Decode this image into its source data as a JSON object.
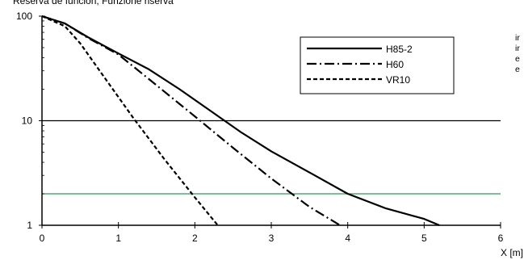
{
  "chart_data": {
    "type": "line",
    "title": "Reserva de función, Funzione riserva",
    "xlabel": "X [m]",
    "ylabel": "",
    "xlim": [
      0,
      6
    ],
    "ylim": [
      1,
      100
    ],
    "yscale": "log",
    "x_ticks": [
      "0",
      "1",
      "2",
      "3",
      "4",
      "5",
      "6"
    ],
    "y_ticks": [
      "1",
      "10",
      "100"
    ],
    "grid": false,
    "reference_lines": [
      {
        "y": 10,
        "color": "#000000"
      },
      {
        "y": 2,
        "color": "#2e9b57"
      }
    ],
    "legend_position": "top-right",
    "series": [
      {
        "name": "H85-2",
        "style": "solid",
        "x": [
          0,
          0.3,
          0.6,
          1.0,
          1.4,
          1.8,
          2.2,
          2.6,
          3.0,
          3.5,
          4.0,
          4.5,
          5.0,
          5.2
        ],
        "y": [
          100,
          85,
          63,
          44,
          31,
          20,
          12.5,
          7.8,
          5.1,
          3.2,
          2.0,
          1.45,
          1.15,
          1.0
        ]
      },
      {
        "name": "H60",
        "style": "dash-dot",
        "x": [
          0,
          0.3,
          0.6,
          1.0,
          1.4,
          2.0,
          2.5,
          3.0,
          3.5,
          3.9
        ],
        "y": [
          100,
          85,
          62,
          43,
          25,
          11,
          5.5,
          2.8,
          1.5,
          1.0
        ]
      },
      {
        "name": "VR10",
        "style": "dashed",
        "x": [
          0,
          0.3,
          0.5,
          0.8,
          1.2,
          1.6,
          2.0,
          2.3
        ],
        "y": [
          100,
          80,
          55,
          27,
          10.5,
          4.3,
          1.85,
          1.0
        ]
      }
    ]
  },
  "side_notes": [
    "ir",
    "ir",
    "e",
    "e"
  ]
}
